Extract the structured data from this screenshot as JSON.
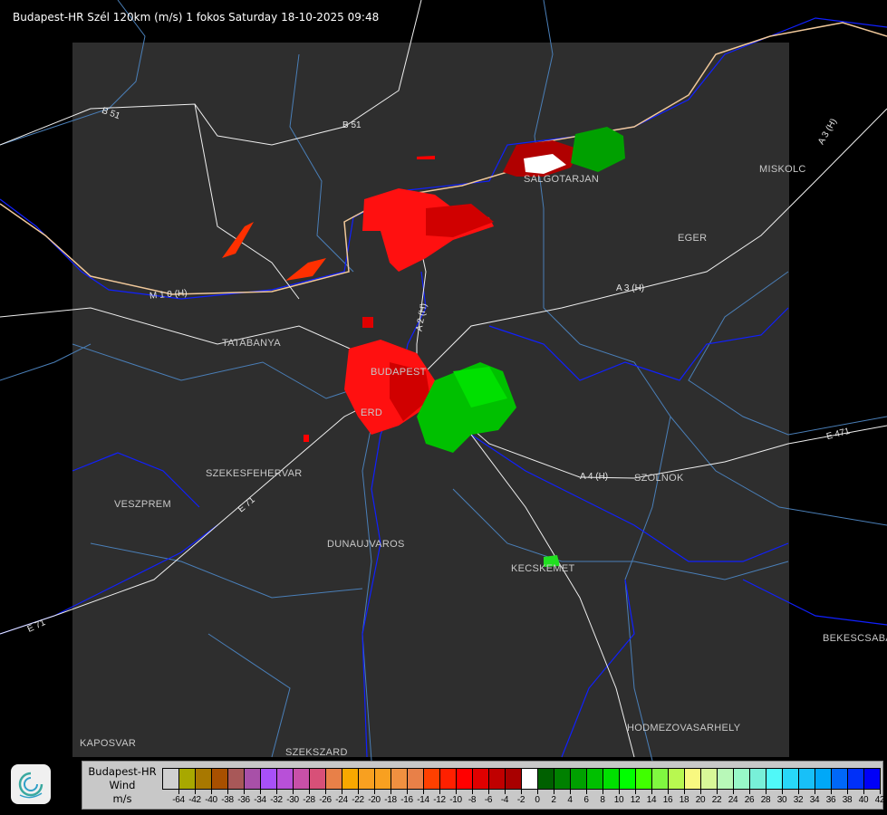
{
  "title": "Budapest-HR Szél 120km (m/s) 1 fokos Saturday 18-10-2025 09:48",
  "map": {
    "background_color": "#000000",
    "radar_area_color": "#2e2e2e",
    "places": [
      "SALGOTARJAN",
      "MISKOLC",
      "EGER",
      "TATABANYA",
      "BUDAPEST",
      "ERD",
      "SZEKESFEHERVAR",
      "VESZPREM",
      "SZOLNOK",
      "DUNAUJVAROS",
      "KECSKEMET",
      "BEKESCSABA",
      "HODMEZOVASARHELY",
      "KAPOSVAR",
      "SZEKSZARD"
    ],
    "roads": [
      "B 51",
      "B 51",
      "A 3 (H)",
      "A 3 (H)",
      "M 1 0 (H)",
      "A 2 (H)",
      "E 71",
      "A 4 (H)",
      "E 471",
      "E 71"
    ]
  },
  "logo": "OMSZ radar logo",
  "legend": {
    "line1": "Budapest-HR",
    "line2": "Wind",
    "line3": "m/s",
    "colors": [
      "#d0d0d0",
      "#a8a800",
      "#a87800",
      "#a85000",
      "#a85858",
      "#a850a8",
      "#a850f8",
      "#b850d8",
      "#c850a8",
      "#d85078",
      "#e88048",
      "#f8a800",
      "#f8a020",
      "#f8a020",
      "#f09040",
      "#e88048",
      "#ff4000",
      "#ff2000",
      "#ff0000",
      "#e00000",
      "#c00000",
      "#a80000",
      "#ffffff",
      "#006000",
      "#008000",
      "#00a000",
      "#00c000",
      "#00e000",
      "#00ff00",
      "#40ff00",
      "#80f840",
      "#b8f850",
      "#f8f880",
      "#d8f898",
      "#b8f8b8",
      "#98f8c8",
      "#78f0d8",
      "#50f8f8",
      "#28d8f8",
      "#18c0f8",
      "#00a8f8",
      "#0068f8",
      "#0030f8",
      "#0000f8"
    ],
    "labels": [
      "-64",
      "-42",
      "-40",
      "-38",
      "-36",
      "-34",
      "-32",
      "-30",
      "-28",
      "-26",
      "-24",
      "-22",
      "-20",
      "-18",
      "-16",
      "-14",
      "-12",
      "-10",
      "-8",
      "-6",
      "-4",
      "-2",
      "0",
      "2",
      "4",
      "6",
      "8",
      "10",
      "12",
      "14",
      "16",
      "18",
      "20",
      "22",
      "24",
      "26",
      "28",
      "30",
      "32",
      "34",
      "36",
      "38",
      "40",
      "42"
    ]
  }
}
